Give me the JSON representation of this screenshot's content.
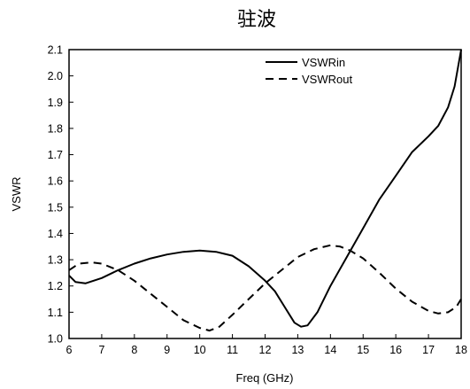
{
  "chart_data": {
    "type": "line",
    "title": "驻波",
    "xlabel": "Freq (GHz)",
    "ylabel": "VSWR",
    "xlim": [
      6,
      18
    ],
    "ylim": [
      1.0,
      2.1
    ],
    "xticks": [
      6,
      7,
      8,
      9,
      10,
      11,
      12,
      13,
      14,
      15,
      16,
      17,
      18
    ],
    "yticks": [
      1.0,
      1.1,
      1.2,
      1.3,
      1.4,
      1.5,
      1.6,
      1.7,
      1.8,
      1.9,
      2.0,
      2.1
    ],
    "ytick_labels": [
      "1.0",
      "1.1",
      "1.2",
      "1.3",
      "1.4",
      "1.5",
      "1.6",
      "1.7",
      "1.8",
      "1.9",
      "2.0",
      "2.1"
    ],
    "grid": false,
    "legend_position": "top-right",
    "series": [
      {
        "name": "VSWRin",
        "style": "solid",
        "color": "#000000",
        "x": [
          6.0,
          6.2,
          6.5,
          7.0,
          7.5,
          8.0,
          8.5,
          9.0,
          9.5,
          10.0,
          10.5,
          11.0,
          11.5,
          12.0,
          12.3,
          12.6,
          12.9,
          13.1,
          13.3,
          13.6,
          14.0,
          14.5,
          15.0,
          15.5,
          16.0,
          16.5,
          17.0,
          17.3,
          17.6,
          17.8,
          18.0
        ],
        "y": [
          1.24,
          1.215,
          1.21,
          1.23,
          1.26,
          1.285,
          1.305,
          1.32,
          1.33,
          1.335,
          1.33,
          1.315,
          1.275,
          1.22,
          1.18,
          1.12,
          1.06,
          1.045,
          1.05,
          1.1,
          1.2,
          1.31,
          1.42,
          1.53,
          1.62,
          1.71,
          1.77,
          1.81,
          1.88,
          1.96,
          2.1
        ]
      },
      {
        "name": "VSWRout",
        "style": "dashed",
        "color": "#000000",
        "x": [
          6.0,
          6.3,
          6.7,
          7.0,
          7.5,
          8.0,
          8.5,
          9.0,
          9.5,
          10.0,
          10.3,
          10.6,
          11.0,
          11.5,
          12.0,
          12.5,
          13.0,
          13.5,
          14.0,
          14.3,
          14.6,
          15.0,
          15.5,
          16.0,
          16.5,
          17.0,
          17.3,
          17.6,
          17.85,
          18.0
        ],
        "y": [
          1.26,
          1.285,
          1.29,
          1.285,
          1.26,
          1.22,
          1.17,
          1.12,
          1.07,
          1.04,
          1.03,
          1.045,
          1.09,
          1.15,
          1.21,
          1.26,
          1.31,
          1.34,
          1.355,
          1.35,
          1.335,
          1.305,
          1.25,
          1.19,
          1.14,
          1.105,
          1.095,
          1.1,
          1.12,
          1.15
        ]
      }
    ]
  }
}
